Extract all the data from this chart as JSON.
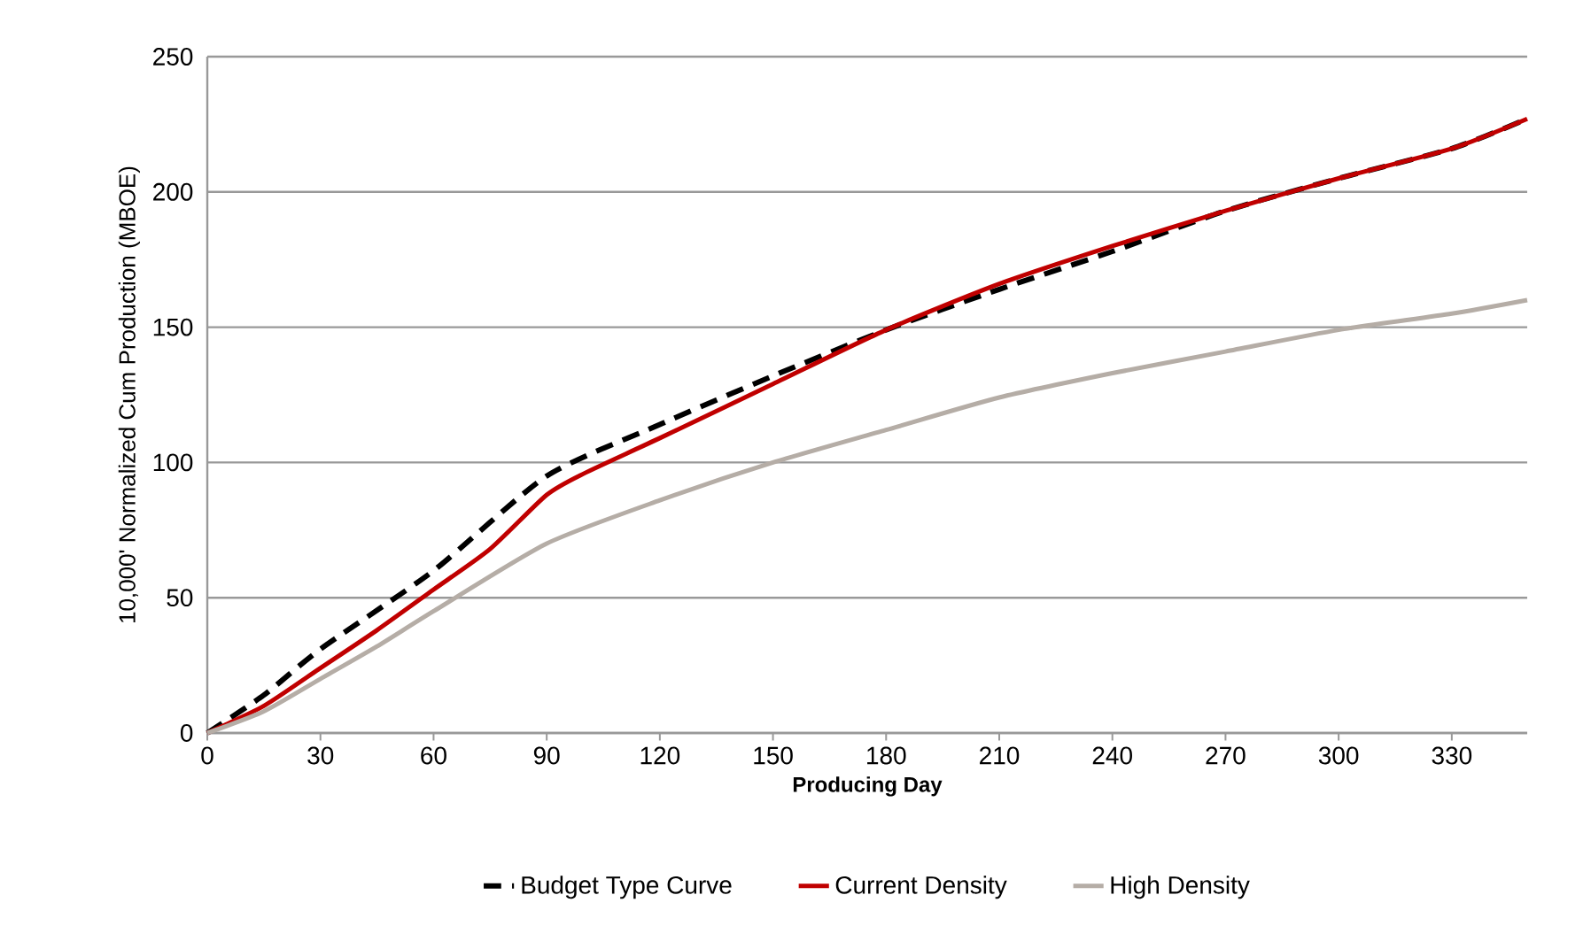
{
  "chart_data": {
    "type": "line",
    "xlabel": "Producing Day",
    "ylabel": "10,000' Normalized Cum Production (MBOE)",
    "xlim": [
      0,
      350
    ],
    "ylim": [
      0,
      250
    ],
    "xticks": [
      0,
      30,
      60,
      90,
      120,
      150,
      180,
      210,
      240,
      270,
      300,
      330
    ],
    "yticks": [
      0,
      50,
      100,
      150,
      200,
      250
    ],
    "grid": "y",
    "legend": "bottom",
    "marker": "none",
    "series": [
      {
        "name": "Budget Type Curve",
        "color": "#000000",
        "line_style": "dashed",
        "x": [
          0,
          15,
          30,
          60,
          90,
          120,
          150,
          180,
          210,
          240,
          270,
          300,
          330,
          350
        ],
        "values": [
          0,
          14,
          31,
          60,
          95,
          114,
          132,
          149,
          164,
          178,
          193,
          205,
          216,
          227
        ]
      },
      {
        "name": "Current Density",
        "color": "#c00000",
        "line_style": "solid",
        "x": [
          0,
          15,
          30,
          45,
          60,
          75,
          90,
          100,
          120,
          150,
          180,
          210,
          240,
          270,
          300,
          330,
          350
        ],
        "values": [
          0,
          10,
          24,
          38,
          53,
          68,
          88,
          96,
          109,
          129,
          149,
          166,
          180,
          193,
          205,
          216,
          227
        ]
      },
      {
        "name": "High Density",
        "color": "#b5ada6",
        "line_style": "solid",
        "x": [
          0,
          15,
          30,
          45,
          60,
          90,
          120,
          150,
          180,
          210,
          240,
          270,
          300,
          330,
          350
        ],
        "values": [
          0,
          8,
          20,
          32,
          45,
          70,
          86,
          100,
          112,
          124,
          133,
          141,
          149,
          155,
          160
        ]
      }
    ]
  }
}
